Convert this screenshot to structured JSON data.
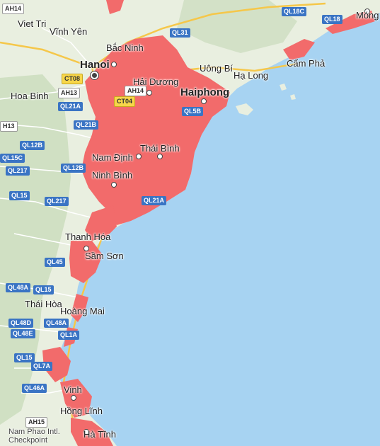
{
  "map": {
    "colors": {
      "water": "#a7d3f2",
      "land": "#e9efe0",
      "land_mountain": "#c9dcbc",
      "flood": "#f26b6b",
      "major_road": "#f5c74a",
      "road": "#ffffff"
    },
    "cities": [
      {
        "id": "hanoi",
        "name": "Hanoi",
        "style": "big",
        "marker": "capital"
      },
      {
        "id": "haiphong",
        "name": "Haiphong",
        "style": "big",
        "marker": "dot"
      },
      {
        "id": "viet-tri",
        "name": "Viet Tri",
        "style": "mid",
        "marker": "dot"
      },
      {
        "id": "vinh-yen",
        "name": "Vĩnh Yên",
        "style": "mid",
        "marker": "dot"
      },
      {
        "id": "bac-ninh",
        "name": "Bắc Ninh",
        "style": "mid",
        "marker": "dot"
      },
      {
        "id": "hai-duong",
        "name": "Hải Dương",
        "style": "mid",
        "marker": "dot"
      },
      {
        "id": "uong-bi",
        "name": "Uông Bí",
        "style": "mid",
        "marker": "dot"
      },
      {
        "id": "ha-long",
        "name": "Hạ Long",
        "style": "mid",
        "marker": "dot"
      },
      {
        "id": "cam-pha",
        "name": "Cẩm Phả",
        "style": "mid",
        "marker": "dot"
      },
      {
        "id": "mong-cai",
        "name": "Móng C",
        "style": "mid",
        "marker": "dot"
      },
      {
        "id": "hoa-binh",
        "name": "Hoa Binh",
        "style": "mid",
        "marker": "dot"
      },
      {
        "id": "nam-dinh",
        "name": "Nam Định",
        "style": "mid",
        "marker": "dot"
      },
      {
        "id": "thai-binh",
        "name": "Thái Bình",
        "style": "mid",
        "marker": "dot"
      },
      {
        "id": "ninh-binh",
        "name": "Ninh Bình",
        "style": "mid",
        "marker": "dot"
      },
      {
        "id": "thanh-hoa",
        "name": "Thanh Hóa",
        "style": "mid",
        "marker": "dot"
      },
      {
        "id": "sam-son",
        "name": "Sầm Sơn",
        "style": "mid",
        "marker": "dot"
      },
      {
        "id": "thai-hoa",
        "name": "Thái Hòa",
        "style": "mid",
        "marker": "dot"
      },
      {
        "id": "hoang-mai",
        "name": "Hoàng Mai",
        "style": "mid",
        "marker": "dot"
      },
      {
        "id": "vinh",
        "name": "Vinh",
        "style": "mid",
        "marker": "dot"
      },
      {
        "id": "hong-linh",
        "name": "Hồng Lĩnh",
        "style": "mid",
        "marker": "dot"
      },
      {
        "id": "ha-tinh",
        "name": "Hà Tĩnh",
        "style": "mid",
        "marker": "dot"
      },
      {
        "id": "nam-phao",
        "name": "Nam Phao Intl. Checkpoint",
        "style": "small",
        "marker": "none"
      }
    ],
    "roads": [
      "AH14",
      "QL18C",
      "QL18",
      "QL31",
      "CT08",
      "AH13",
      "AH14",
      "CT04",
      "QL21A",
      "QL5B",
      "QL21B",
      "QL12B",
      "QL15C",
      "QL12B",
      "QL217",
      "QL15",
      "QL217",
      "QL21A",
      "QL45",
      "QL48A",
      "QL15",
      "QL48D",
      "QL48A",
      "QL48E",
      "QL1A",
      "QL15",
      "QL7A",
      "QL46A",
      "AH15",
      "H13"
    ]
  }
}
